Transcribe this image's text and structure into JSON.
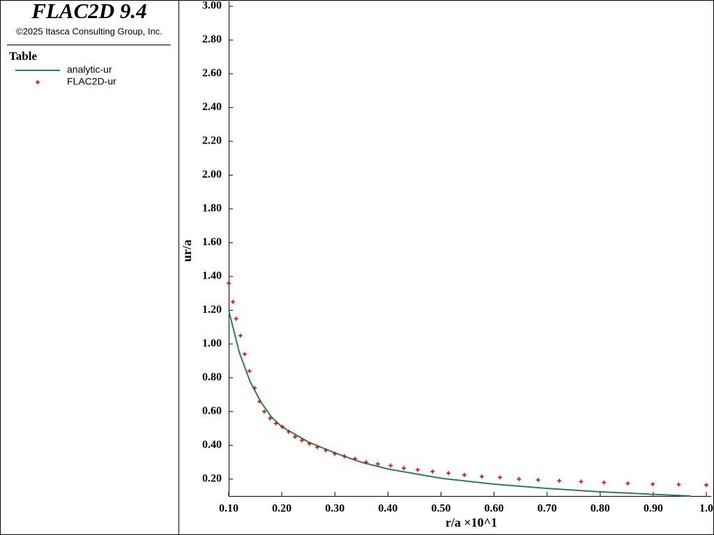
{
  "chart_data": {
    "type": "line_scatter",
    "title": "FLAC2D 9.4",
    "subtitle": "©2025 Itasca Consulting Group, Inc.",
    "legend_title": "Table",
    "x_label": "r/a ×10^1",
    "y_label": "ur/a",
    "xlim": [
      0.1,
      1.0
    ],
    "ylim": [
      0.1,
      3.0
    ],
    "xticks": [
      {
        "value": 0.1,
        "label": "0.10"
      },
      {
        "value": 0.2,
        "label": "0.20"
      },
      {
        "value": 0.3,
        "label": "0.30"
      },
      {
        "value": 0.4,
        "label": "0.40"
      },
      {
        "value": 0.5,
        "label": "0.50"
      },
      {
        "value": 0.6,
        "label": "0.60"
      },
      {
        "value": 0.7,
        "label": "0.70"
      },
      {
        "value": 0.8,
        "label": "0.80"
      },
      {
        "value": 0.9,
        "label": "0.90"
      },
      {
        "value": 1.0,
        "label": "1.0"
      }
    ],
    "yticks": [
      {
        "value": 0.2,
        "label": "0.20"
      },
      {
        "value": 0.4,
        "label": "0.40"
      },
      {
        "value": 0.6,
        "label": "0.60"
      },
      {
        "value": 0.8,
        "label": "0.80"
      },
      {
        "value": 1.0,
        "label": "1.00"
      },
      {
        "value": 1.2,
        "label": "1.20"
      },
      {
        "value": 1.4,
        "label": "1.40"
      },
      {
        "value": 1.6,
        "label": "1.60"
      },
      {
        "value": 1.8,
        "label": "1.80"
      },
      {
        "value": 2.0,
        "label": "2.00"
      },
      {
        "value": 2.2,
        "label": "2.20"
      },
      {
        "value": 2.4,
        "label": "2.40"
      },
      {
        "value": 2.6,
        "label": "2.60"
      },
      {
        "value": 2.8,
        "label": "2.80"
      },
      {
        "value": 3.0,
        "label": "3.00"
      }
    ],
    "series": [
      {
        "name": "analytic-ur",
        "style": "line",
        "color": "#2a7f50",
        "x": [
          0.1,
          0.12,
          0.14,
          0.16,
          0.18,
          0.2,
          0.25,
          0.3,
          0.35,
          0.4,
          0.5,
          0.6,
          0.7,
          0.8,
          0.9,
          0.97
        ],
        "values": [
          1.2,
          0.95,
          0.78,
          0.66,
          0.57,
          0.51,
          0.42,
          0.355,
          0.3,
          0.26,
          0.205,
          0.17,
          0.145,
          0.125,
          0.11,
          0.1
        ]
      },
      {
        "name": "FLAC2D-ur",
        "style": "marker",
        "color": "#e00000",
        "x": [
          0.1,
          0.108,
          0.114,
          0.122,
          0.13,
          0.139,
          0.149,
          0.158,
          0.167,
          0.178,
          0.189,
          0.201,
          0.213,
          0.225,
          0.238,
          0.252,
          0.267,
          0.283,
          0.3,
          0.318,
          0.338,
          0.359,
          0.381,
          0.405,
          0.43,
          0.456,
          0.484,
          0.514,
          0.544,
          0.577,
          0.611,
          0.647,
          0.683,
          0.723,
          0.764,
          0.807,
          0.852,
          0.899,
          0.948,
          1.0
        ],
        "values": [
          1.36,
          1.25,
          1.15,
          1.05,
          0.94,
          0.84,
          0.74,
          0.66,
          0.6,
          0.56,
          0.53,
          0.51,
          0.48,
          0.45,
          0.43,
          0.41,
          0.39,
          0.37,
          0.35,
          0.335,
          0.32,
          0.3,
          0.29,
          0.28,
          0.265,
          0.255,
          0.245,
          0.235,
          0.225,
          0.215,
          0.21,
          0.2,
          0.195,
          0.19,
          0.185,
          0.18,
          0.175,
          0.17,
          0.168,
          0.165
        ]
      }
    ]
  }
}
